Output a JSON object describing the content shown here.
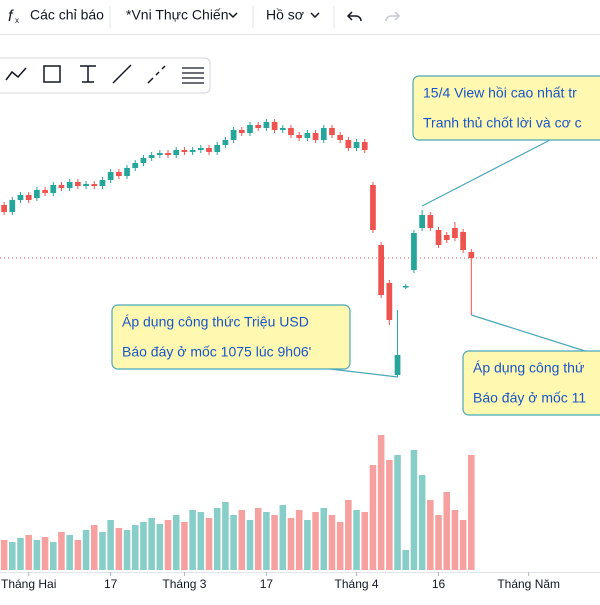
{
  "toolbar": {
    "indicators": "Các chỉ báo",
    "layout": "*Vni Thực Chiến",
    "profile": "Hồ sơ"
  },
  "chart_data": {
    "type": "candlestick",
    "up_color": "#26a69a",
    "down_color": "#ef5350",
    "ylim": [
      1000,
      1350
    ],
    "xlim": [
      -0.5,
      72.7
    ],
    "xticks": [
      {
        "value": 3,
        "label": "Tháng Hai"
      },
      {
        "value": 13,
        "label": "17"
      },
      {
        "value": 22,
        "label": "Tháng 3"
      },
      {
        "value": 32,
        "label": "17"
      },
      {
        "value": 43,
        "label": "Tháng 4"
      },
      {
        "value": 53,
        "label": "16"
      },
      {
        "value": 64,
        "label": "Tháng Năm"
      }
    ],
    "candles": [
      [
        1247,
        1250,
        1237,
        1240
      ],
      [
        1240,
        1255,
        1237,
        1252
      ],
      [
        1252,
        1260,
        1249,
        1257
      ],
      [
        1257,
        1260,
        1249,
        1252
      ],
      [
        1254,
        1265,
        1251,
        1262
      ],
      [
        1262,
        1265,
        1256,
        1259
      ],
      [
        1259,
        1270,
        1256,
        1267
      ],
      [
        1267,
        1270,
        1261,
        1264
      ],
      [
        1264,
        1273,
        1261,
        1270
      ],
      [
        1270,
        1273,
        1263,
        1266
      ],
      [
        1266,
        1271,
        1263,
        1268
      ],
      [
        1268,
        1271,
        1263,
        1266
      ],
      [
        1266,
        1275,
        1263,
        1272
      ],
      [
        1272,
        1283,
        1269,
        1280
      ],
      [
        1280,
        1283,
        1273,
        1276
      ],
      [
        1276,
        1287,
        1273,
        1284
      ],
      [
        1284,
        1292,
        1281,
        1289
      ],
      [
        1289,
        1297,
        1286,
        1294
      ],
      [
        1294,
        1300,
        1291,
        1297
      ],
      [
        1297,
        1302,
        1294,
        1299
      ],
      [
        1299,
        1302,
        1294,
        1297
      ],
      [
        1297,
        1305,
        1294,
        1302
      ],
      [
        1302,
        1305,
        1297,
        1300
      ],
      [
        1300,
        1305,
        1297,
        1302
      ],
      [
        1302,
        1307,
        1299,
        1304
      ],
      [
        1304,
        1307,
        1297,
        1300
      ],
      [
        1300,
        1310,
        1297,
        1307
      ],
      [
        1307,
        1315,
        1304,
        1312
      ],
      [
        1312,
        1325,
        1309,
        1322
      ],
      [
        1322,
        1325,
        1316,
        1319
      ],
      [
        1319,
        1330,
        1316,
        1327
      ],
      [
        1327,
        1330,
        1321,
        1324
      ],
      [
        1324,
        1333,
        1321,
        1330
      ],
      [
        1330,
        1333,
        1319,
        1322
      ],
      [
        1322,
        1327,
        1319,
        1324
      ],
      [
        1324,
        1327,
        1314,
        1317
      ],
      [
        1317,
        1320,
        1311,
        1314
      ],
      [
        1314,
        1322,
        1311,
        1319
      ],
      [
        1319,
        1322,
        1309,
        1312
      ],
      [
        1312,
        1327,
        1309,
        1324
      ],
      [
        1324,
        1327,
        1314,
        1317
      ],
      [
        1317,
        1320,
        1309,
        1312
      ],
      [
        1312,
        1315,
        1301,
        1304
      ],
      [
        1304,
        1313,
        1301,
        1310
      ],
      [
        1310,
        1313,
        1299,
        1302
      ],
      [
        1267,
        1270,
        1219,
        1222
      ],
      [
        1207,
        1210,
        1154,
        1157
      ],
      [
        1169,
        1172,
        1127,
        1132
      ],
      [
        1077,
        1142,
        1075,
        1097
      ],
      [
        1165,
        1168,
        1163,
        1166
      ],
      [
        1182,
        1222,
        1179,
        1219
      ],
      [
        1224,
        1242,
        1221,
        1237
      ],
      [
        1237,
        1240,
        1221,
        1224
      ],
      [
        1222,
        1225,
        1204,
        1207
      ],
      [
        1217,
        1220,
        1209,
        1212
      ],
      [
        1224,
        1230,
        1211,
        1214
      ],
      [
        1220,
        1223,
        1199,
        1202
      ],
      [
        1200,
        1203,
        1137,
        1194
      ]
    ],
    "volume_lim": [
      0,
      150
    ],
    "volume": [
      30,
      28,
      32,
      35,
      30,
      33,
      28,
      38,
      35,
      30,
      40,
      45,
      38,
      50,
      42,
      40,
      45,
      48,
      52,
      46,
      50,
      55,
      48,
      60,
      58,
      52,
      62,
      68,
      55,
      60,
      50,
      62,
      58,
      55,
      65,
      52,
      60,
      50,
      58,
      62,
      55,
      48,
      70,
      60,
      58,
      105,
      135,
      110,
      115,
      20,
      120,
      95,
      70,
      55,
      78,
      60,
      50,
      115
    ],
    "annotations": [
      {
        "lines": [
          "15/4 View hồi cao nhất tr",
          "Tranh thủ chốt lời và cơ c"
        ],
        "target": 51
      },
      {
        "lines": [
          "Áp dụng công thức Triệu USD",
          "Báo đáy ở mốc 1075 lúc 9h06'"
        ],
        "target": 48
      },
      {
        "lines": [
          "Áp dụng công thứ",
          "Báo đáy ở mốc 11"
        ],
        "target": 57
      }
    ]
  }
}
